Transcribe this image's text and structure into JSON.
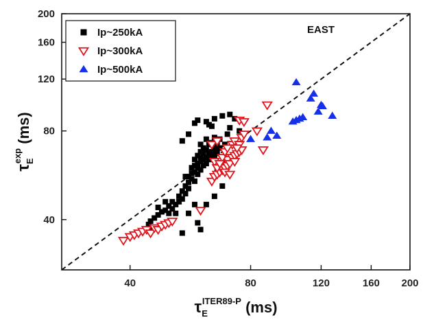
{
  "chart_data": {
    "type": "scatter",
    "xscale": "log",
    "yscale": "log",
    "xlim": [
      27,
      200
    ],
    "ylim": [
      27,
      200
    ],
    "xticks": [
      40,
      80,
      120,
      160,
      200
    ],
    "yticks": [
      40,
      80,
      120,
      160,
      200
    ],
    "xlabel": {
      "base": "τ",
      "sub": "E",
      "sup": "ITER89-P",
      "unit": "(ms)"
    },
    "ylabel": {
      "base": "τ",
      "sub": "E",
      "sup": "exp",
      "unit": "(ms)"
    },
    "annotation": "EAST",
    "grid": false,
    "legend_position": "top-left",
    "reference_line": {
      "style": "dashed",
      "color": "#111111",
      "relation": "y=x"
    },
    "series": [
      {
        "name": "Ip~250kA",
        "marker": "square-filled",
        "color": "#000000",
        "points": [
          [
            44.5,
            38.5
          ],
          [
            45,
            37
          ],
          [
            45,
            39.5
          ],
          [
            46,
            40.5
          ],
          [
            47,
            41.5
          ],
          [
            48,
            42.5
          ],
          [
            49,
            43
          ],
          [
            50,
            42
          ],
          [
            50,
            44.5
          ],
          [
            51,
            43.5
          ],
          [
            51,
            46
          ],
          [
            52,
            45
          ],
          [
            53,
            46
          ],
          [
            53,
            48
          ],
          [
            54,
            47
          ],
          [
            54,
            50
          ],
          [
            55,
            49
          ],
          [
            55,
            52
          ],
          [
            55,
            56
          ],
          [
            56,
            51
          ],
          [
            56,
            53.5
          ],
          [
            56,
            56
          ],
          [
            57,
            55
          ],
          [
            57,
            57.5
          ],
          [
            57,
            60
          ],
          [
            58,
            54
          ],
          [
            58,
            58
          ],
          [
            58,
            61
          ],
          [
            58,
            64
          ],
          [
            59,
            57
          ],
          [
            59,
            60
          ],
          [
            59,
            62
          ],
          [
            59,
            66
          ],
          [
            60,
            59
          ],
          [
            60,
            63
          ],
          [
            60,
            65
          ],
          [
            60,
            68
          ],
          [
            60,
            72
          ],
          [
            61,
            61
          ],
          [
            61,
            64
          ],
          [
            61,
            67
          ],
          [
            61,
            70
          ],
          [
            62,
            62
          ],
          [
            62,
            65
          ],
          [
            62,
            69
          ],
          [
            62,
            75
          ],
          [
            63,
            64
          ],
          [
            63,
            67
          ],
          [
            63,
            72
          ],
          [
            64,
            65
          ],
          [
            64,
            68
          ],
          [
            64,
            73
          ],
          [
            64,
            83
          ],
          [
            65,
            66
          ],
          [
            65,
            70
          ],
          [
            65,
            76
          ],
          [
            66,
            68
          ],
          [
            66,
            73
          ],
          [
            67,
            70
          ],
          [
            67,
            75
          ],
          [
            68,
            62
          ],
          [
            69,
            72
          ],
          [
            70,
            78
          ],
          [
            71,
            82
          ],
          [
            73,
            74
          ],
          [
            75,
            80
          ],
          [
            58,
            85
          ],
          [
            59,
            87
          ],
          [
            62,
            86
          ],
          [
            63,
            84
          ],
          [
            65,
            88
          ],
          [
            68,
            90
          ],
          [
            71,
            91
          ],
          [
            54,
            74
          ],
          [
            56,
            78
          ],
          [
            58,
            45
          ],
          [
            56,
            42
          ],
          [
            59,
            39
          ],
          [
            60,
            37
          ],
          [
            62,
            45
          ],
          [
            65,
            48
          ],
          [
            66,
            58
          ],
          [
            68,
            52
          ],
          [
            73,
            88
          ],
          [
            47,
            44
          ],
          [
            49,
            46
          ],
          [
            52,
            42
          ],
          [
            54,
            36
          ]
        ]
      },
      {
        "name": "Ip~300kA",
        "marker": "triangle-down-open",
        "color": "#e0141c",
        "points": [
          [
            38.5,
            34
          ],
          [
            40,
            35
          ],
          [
            41,
            35.5
          ],
          [
            42,
            36
          ],
          [
            43,
            36.5
          ],
          [
            44,
            37
          ],
          [
            45,
            36
          ],
          [
            46,
            37.5
          ],
          [
            47,
            37
          ],
          [
            48,
            38
          ],
          [
            49,
            38.5
          ],
          [
            50,
            39
          ],
          [
            51,
            39.5
          ],
          [
            60,
            43
          ],
          [
            64,
            54
          ],
          [
            65,
            56
          ],
          [
            66,
            57
          ],
          [
            67,
            58
          ],
          [
            68,
            59
          ],
          [
            69,
            60
          ],
          [
            70,
            61
          ],
          [
            70,
            64
          ],
          [
            71,
            62
          ],
          [
            72,
            65
          ],
          [
            73,
            66
          ],
          [
            74,
            67
          ],
          [
            75,
            68
          ],
          [
            76,
            69
          ],
          [
            72,
            72
          ],
          [
            73,
            74
          ],
          [
            75,
            72
          ],
          [
            76,
            76
          ],
          [
            77,
            78
          ],
          [
            65,
            63
          ],
          [
            68,
            65
          ],
          [
            69,
            68
          ],
          [
            70,
            70
          ],
          [
            64,
            72
          ],
          [
            66,
            74
          ],
          [
            75,
            87
          ],
          [
            77,
            86
          ],
          [
            83,
            80
          ],
          [
            86,
            69
          ],
          [
            88,
            98
          ],
          [
            66,
            60
          ],
          [
            67,
            62
          ],
          [
            69,
            58
          ],
          [
            71,
            57
          ],
          [
            73,
            63
          ],
          [
            74,
            70
          ]
        ]
      },
      {
        "name": "Ip~500kA",
        "marker": "triangle-up-filled",
        "color": "#1530e8",
        "points": [
          [
            80,
            75
          ],
          [
            88,
            76
          ],
          [
            90,
            80
          ],
          [
            93,
            77
          ],
          [
            102,
            86
          ],
          [
            104,
            87
          ],
          [
            106,
            88
          ],
          [
            108,
            89
          ],
          [
            104,
            117
          ],
          [
            113,
            103
          ],
          [
            115,
            107
          ],
          [
            118,
            93
          ],
          [
            120,
            98
          ],
          [
            121,
            97
          ],
          [
            128,
            90
          ]
        ]
      }
    ]
  }
}
